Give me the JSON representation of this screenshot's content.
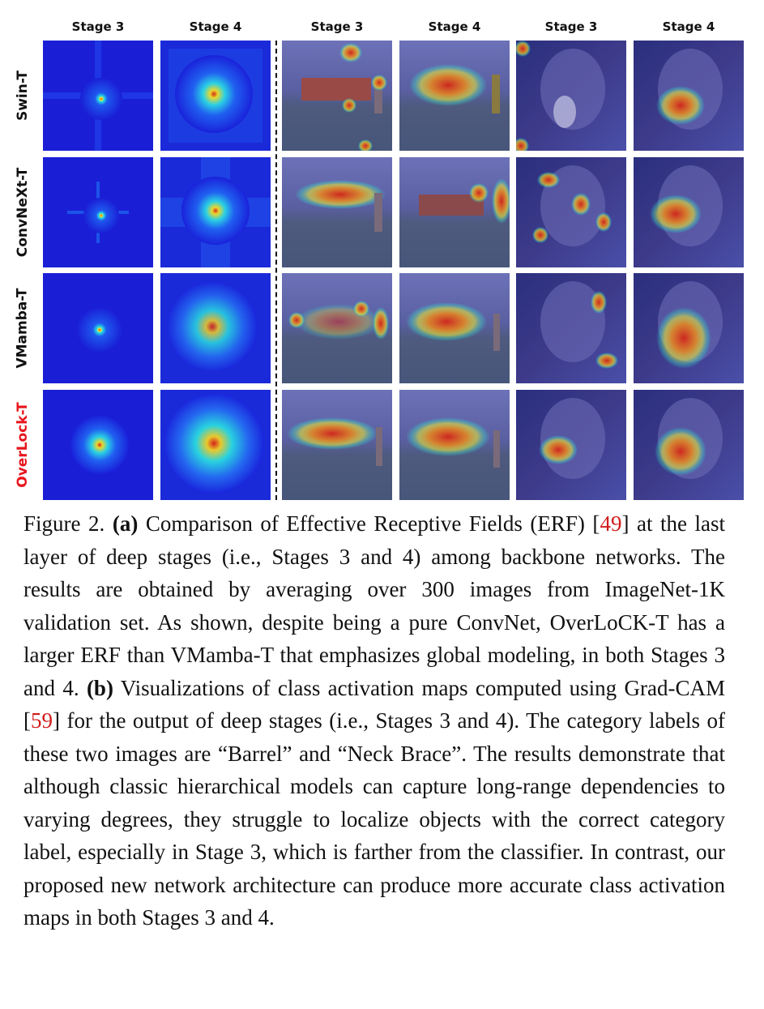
{
  "column_headers": [
    "Stage 3",
    "Stage 4",
    "Stage 3",
    "Stage 4",
    "Stage 3",
    "Stage 4"
  ],
  "row_labels": [
    "Swin-T",
    "ConvNeXt-T",
    "VMamba-T",
    "OverLock-T"
  ],
  "highlight_color": "#e8141c",
  "citation_color": "#d21b1b",
  "panel_a": {
    "description_colors": {
      "background": "#1a1fd6",
      "mid": "#21e0e8",
      "peak": "#e21a10"
    }
  },
  "panel_b": {
    "images": [
      "barrel-scene",
      "neck-brace-portrait"
    ]
  },
  "caption": {
    "figure_label": "Figure 2.",
    "part_a_label": "(a)",
    "part_a_text_1": " Comparison of Effective Receptive Fields (ERF) [",
    "cite_1": "49",
    "part_a_text_2": "] at the last layer of deep stages (i.e., Stages 3 and 4) among backbone networks. The results are obtained by averaging over 300 images from ImageNet-1K validation set. As shown, despite being a pure ConvNet, OverLoCK-T has a larger ERF than VMamba-T that emphasizes global modeling, in both Stages 3 and 4. ",
    "part_b_label": "(b)",
    "part_b_text_1": " Visualizations of class activation maps computed using Grad-CAM [",
    "cite_2": "59",
    "part_b_text_2": "] for the output of deep stages (i.e., Stages 3 and 4). The category labels of these two images are “Barrel” and “Neck Brace”. The results demonstrate that although classic hierarchical models can capture long-range dependencies to varying degrees, they struggle to localize objects with the correct category label, especially in Stage 3, which is farther from the classifier. In contrast, our proposed new network architecture can produce more accurate class activation maps in both Stages 3 and 4."
  }
}
